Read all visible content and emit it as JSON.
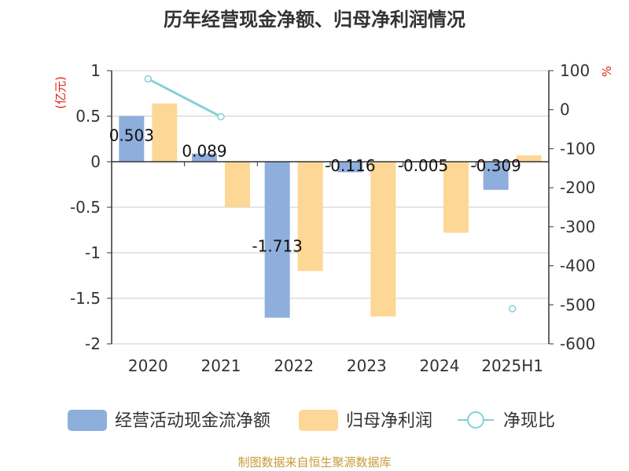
{
  "chart_data": {
    "type": "bar",
    "title": "历年经营现金净额、归母净利润情况",
    "categories": [
      "2020",
      "2021",
      "2022",
      "2023",
      "2024",
      "2025H1"
    ],
    "left_axis": {
      "unit": "(亿元)",
      "ylim": [
        -2,
        1
      ],
      "ticks": [
        "1",
        "0.5",
        "0",
        "-0.5",
        "-1",
        "-1.5",
        "-2"
      ]
    },
    "right_axis": {
      "unit": "%",
      "ylim": [
        -600,
        100
      ],
      "ticks": [
        "100",
        "0",
        "-100",
        "-200",
        "-300",
        "-400",
        "-500",
        "-600"
      ]
    },
    "series": [
      {
        "name": "经营活动现金流净额",
        "axis": "left",
        "kind": "bar",
        "color": "#8eaedc",
        "values": [
          0.503,
          0.089,
          -1.713,
          -0.116,
          -0.005,
          -0.309
        ],
        "labels": [
          "0.503",
          "0.089",
          "-1.713",
          "-0.116",
          "-0.005",
          "-0.309"
        ]
      },
      {
        "name": "归母净利润",
        "axis": "left",
        "kind": "bar",
        "color": "#fdd795",
        "values": [
          0.64,
          -0.5,
          -1.2,
          -1.7,
          -0.78,
          0.07
        ]
      },
      {
        "name": "净现比",
        "axis": "right",
        "kind": "line",
        "color": "#82d2d8",
        "values": [
          79,
          -18,
          null,
          null,
          null,
          -510
        ]
      }
    ],
    "grid": true,
    "legend": "bottom"
  },
  "source": "制图数据来自恒生聚源数据库"
}
